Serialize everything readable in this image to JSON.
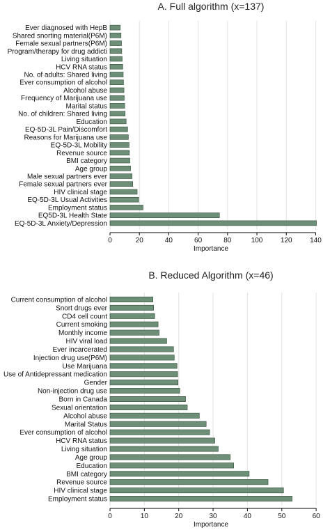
{
  "chart_data": [
    {
      "type": "bar",
      "orientation": "horizontal",
      "title": "A. Full algorithm (x=137)",
      "xlabel": "Importance",
      "ylabel": "",
      "xlim": [
        0,
        145
      ],
      "xticks": [
        0,
        20,
        40,
        60,
        80,
        100,
        120,
        140
      ],
      "grid": true,
      "categories": [
        "Ever diagnosed with HepB",
        "Shared snorting material(P6M)",
        "Female sexual partners(P6M)",
        "Program/therapy for drug addicti",
        "Living situation",
        "HCV RNA status",
        "No. of adults: Shared living",
        "Ever consumption of alcohol",
        "Alcohol abuse",
        "Frequency of Marijuana use",
        "Marital status",
        "No. of children: Shared living",
        "Education",
        "EQ-5D-3L Pain/Discomfort",
        "Reasons for Marijuana use",
        "EQ-5D-3L Mobility",
        "Revenue source",
        "BMI category",
        "Age group",
        "Male sexual partners ever",
        "Female sexual partners ever",
        "HIV clinical stage",
        "EQ-5D-3L Usual Activities",
        "Employment status",
        "EQ5D-3L Health State",
        "EQ-5D-3L Anxiety/Depression"
      ],
      "values": [
        7,
        7.5,
        7.8,
        8,
        8.3,
        8.7,
        9,
        9.2,
        9.5,
        9.7,
        10,
        10.3,
        11,
        12,
        12.5,
        13,
        13.2,
        13.5,
        14,
        15,
        15.5,
        18.5,
        19.5,
        22.5,
        74.5,
        140.5
      ]
    },
    {
      "type": "bar",
      "orientation": "horizontal",
      "title": "B. Reduced Algorithm (x=46)",
      "xlabel": "Importance",
      "ylabel": "",
      "xlim": [
        0,
        62
      ],
      "xticks": [
        0,
        10,
        20,
        30,
        40,
        50,
        60
      ],
      "grid": true,
      "categories": [
        "Current consumption of alcohol",
        "Snort drugs ever",
        "CD4 cell count",
        "Current smoking",
        "Monthly income",
        "HIV viral load",
        "Ever incarcerated",
        "Injection drug use(P6M)",
        "Use Marijuana",
        "Use of Antidepressant medication",
        "Gender",
        "Non-injection drug use",
        "Born in Canada",
        "Sexual orientation",
        "Alcohol abuse",
        "Marital Status",
        "Ever consumption of alcohol",
        "HCV RNA status",
        "Living situation",
        "Age group",
        "Education",
        "BMI category",
        "Revenue source",
        "HIV clinical stage",
        "Employment status"
      ],
      "values": [
        12.5,
        12.7,
        13,
        14,
        14.3,
        16.5,
        18.5,
        18.7,
        19.5,
        19.7,
        19.8,
        20.3,
        22,
        22.5,
        26,
        28,
        29,
        30.5,
        31.5,
        35,
        36,
        40.5,
        46,
        50.5,
        53
      ]
    }
  ],
  "colors": {
    "bar_fill": "#6e8f77",
    "bar_edge": "#2f4a37",
    "grid": "#e2e2e2"
  }
}
